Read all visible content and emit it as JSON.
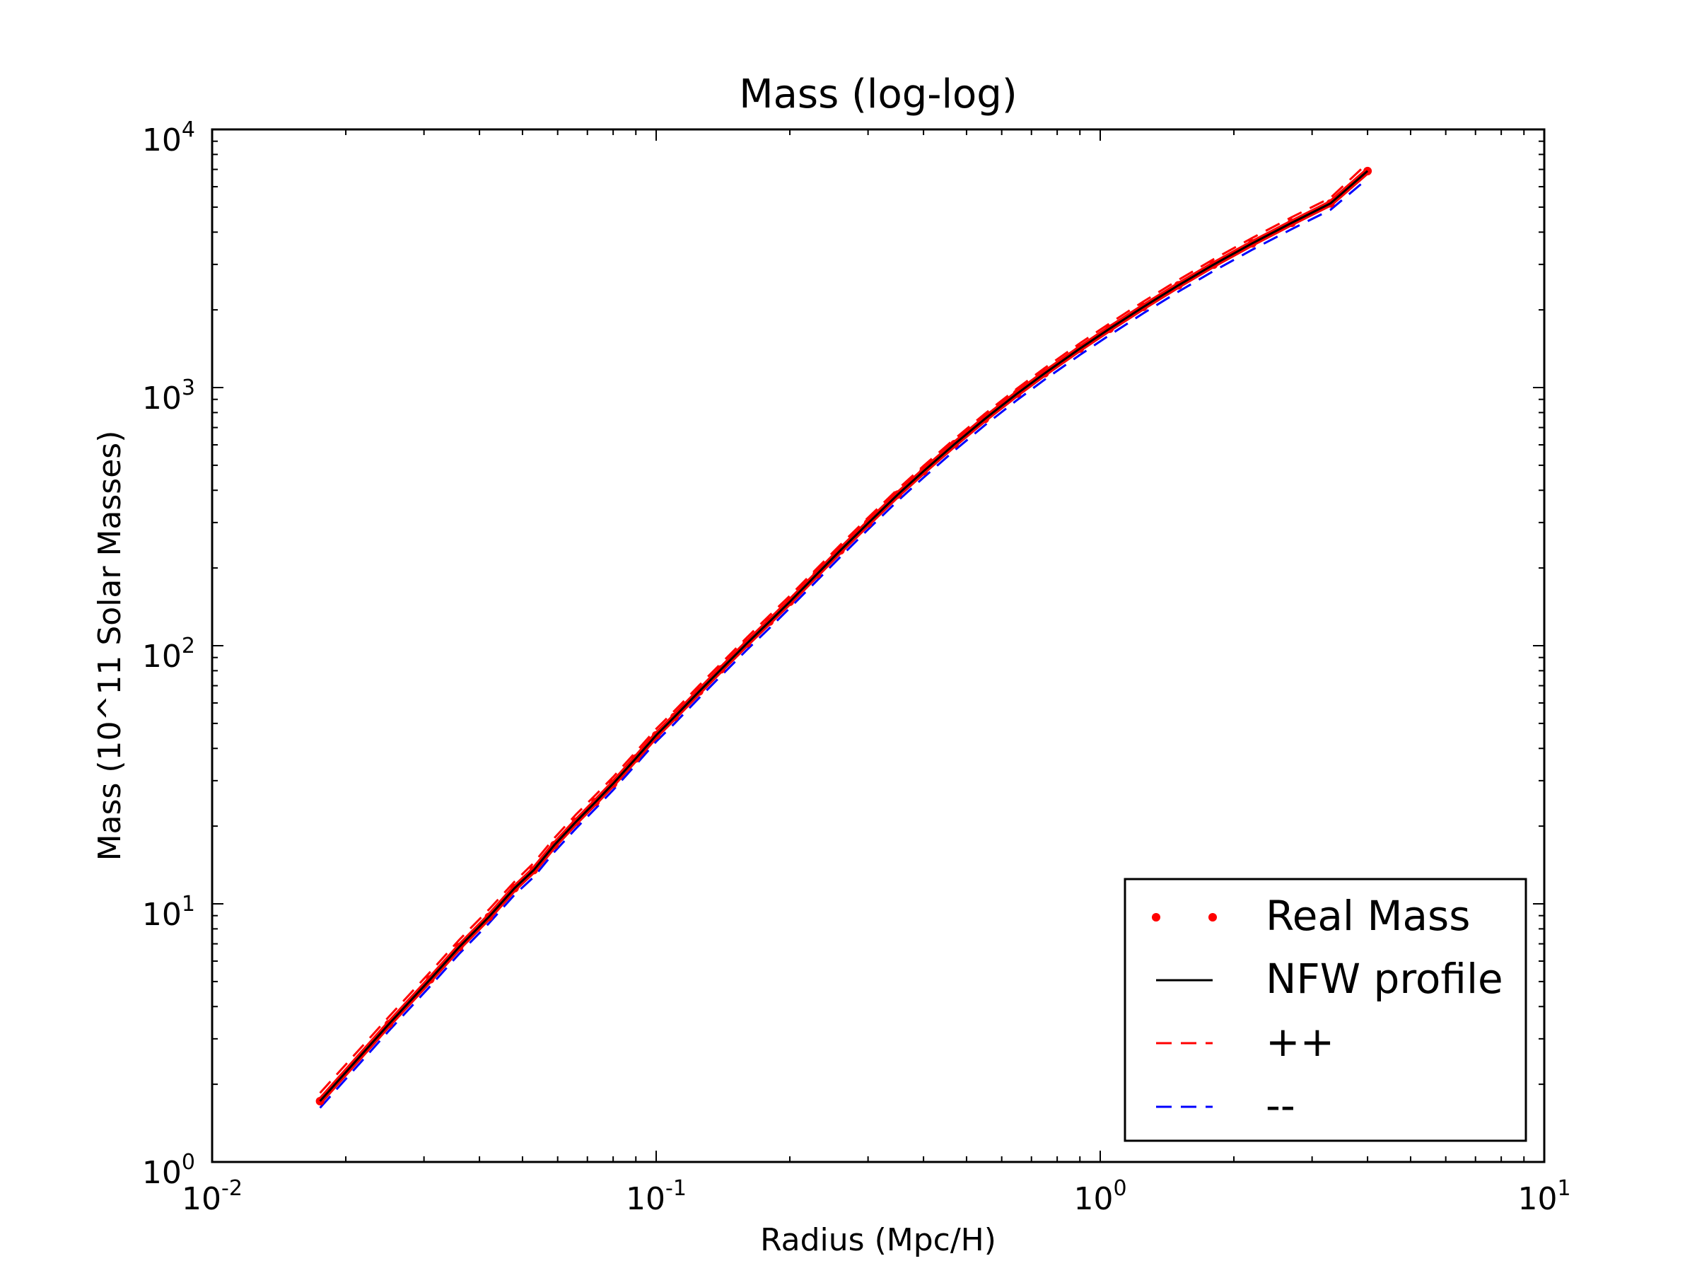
{
  "chart_data": {
    "type": "line",
    "title": "Mass (log-log)",
    "xlabel": "Radius (Mpc/H)",
    "ylabel": "Mass (10^11 Solar Masses)",
    "xscale": "log",
    "yscale": "log",
    "xlim": [
      0.01,
      10
    ],
    "ylim": [
      1,
      10000
    ],
    "x_ticks": [
      {
        "value": 0.01,
        "base": "10",
        "exp": "-2"
      },
      {
        "value": 0.1,
        "base": "10",
        "exp": "-1"
      },
      {
        "value": 1,
        "base": "10",
        "exp": "0"
      },
      {
        "value": 10,
        "base": "10",
        "exp": "1"
      }
    ],
    "y_ticks": [
      {
        "value": 1,
        "base": "10",
        "exp": "0"
      },
      {
        "value": 10,
        "base": "10",
        "exp": "1"
      },
      {
        "value": 100,
        "base": "10",
        "exp": "2"
      },
      {
        "value": 1000,
        "base": "10",
        "exp": "3"
      },
      {
        "value": 10000,
        "base": "10",
        "exp": "4"
      }
    ],
    "grid": false,
    "legend_position": "lower-right",
    "x": [
      0.0175,
      0.025,
      0.031,
      0.036,
      0.042,
      0.048,
      0.053,
      0.059,
      0.066,
      0.073,
      0.08,
      0.09,
      0.1,
      0.11,
      0.125,
      0.14,
      0.16,
      0.18,
      0.2,
      0.23,
      0.26,
      0.3,
      0.35,
      0.4,
      0.47,
      0.55,
      0.65,
      0.75,
      0.9,
      1.05,
      1.25,
      1.5,
      1.8,
      2.2,
      2.7,
      3.3,
      4.0
    ],
    "series": [
      {
        "name": "Real Mass",
        "style": "dots",
        "color": "#ff0000",
        "values": [
          1.72,
          3.42,
          5.1,
          6.8,
          8.9,
          11.5,
          13.5,
          16.9,
          20.8,
          24.8,
          29.2,
          36.6,
          45.0,
          53.0,
          66.5,
          81.0,
          102,
          124,
          148,
          189,
          234,
          298,
          385,
          474,
          604,
          756,
          947,
          1136,
          1416,
          1690,
          2052,
          2490,
          2993,
          3620,
          4350,
          5170,
          6900
        ]
      },
      {
        "name": "NFW profile",
        "style": "solid",
        "color": "#000000",
        "values": [
          1.72,
          3.42,
          5.1,
          6.8,
          8.9,
          11.5,
          13.5,
          16.9,
          20.8,
          24.8,
          29.2,
          36.6,
          45.0,
          53.0,
          66.5,
          81.0,
          102,
          124,
          148,
          189,
          234,
          298,
          385,
          474,
          604,
          756,
          947,
          1136,
          1416,
          1690,
          2052,
          2490,
          2993,
          3620,
          4350,
          5170,
          6900
        ]
      },
      {
        "name": "++",
        "style": "dashed",
        "color": "#ff0000",
        "values": [
          1.85,
          3.65,
          5.45,
          7.25,
          9.5,
          12.2,
          14.4,
          18.0,
          22.2,
          26.4,
          31.0,
          38.8,
          47.6,
          56.0,
          70.2,
          85.4,
          107.5,
          131,
          156,
          199,
          246,
          313,
          404,
          497,
          633,
          792,
          992,
          1190,
          1484,
          1772,
          2152,
          2612,
          3140,
          3800,
          4570,
          5430,
          7400
        ]
      },
      {
        "name": "--",
        "style": "dashed",
        "color": "#0000ff",
        "values": [
          1.62,
          3.22,
          4.8,
          6.4,
          8.4,
          10.85,
          12.7,
          15.9,
          19.6,
          23.4,
          27.6,
          34.6,
          42.5,
          50.0,
          62.8,
          76.5,
          96.3,
          117,
          140,
          178.5,
          221,
          282,
          364,
          448,
          571,
          715,
          895,
          1074,
          1338,
          1597,
          1939,
          2353,
          2828,
          3420,
          4110,
          4880,
          6450
        ]
      }
    ]
  }
}
